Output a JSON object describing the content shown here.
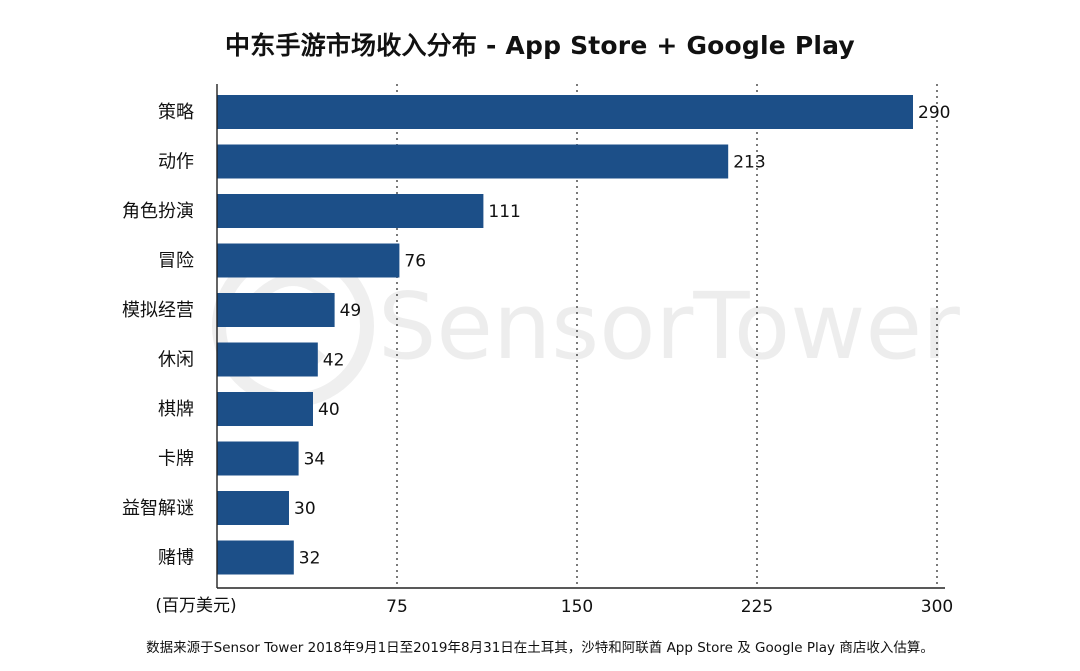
{
  "chart_data": {
    "type": "bar",
    "orientation": "horizontal",
    "title": "中东手游市场收入分布 - App Store + Google Play",
    "unit_label": "(百万美元)",
    "categories": [
      "策略",
      "动作",
      "角色扮演",
      "冒险",
      "模拟经营",
      "休闲",
      "棋牌",
      "卡牌",
      "益智解谜",
      "赌博"
    ],
    "values": [
      290,
      213,
      111,
      76,
      49,
      42,
      40,
      34,
      30,
      32
    ],
    "xlim": [
      0,
      300
    ],
    "x_ticks": [
      75,
      150,
      225,
      300
    ],
    "gridlines": "dotted vertical",
    "bar_color": "#1c4f88"
  },
  "watermark": "SensorTower",
  "footnote": "数据来源于Sensor Tower 2018年9月1日至2019年8月31日在土耳其，沙特和阿联酋 App Store 及 Google Play 商店收入估算。"
}
